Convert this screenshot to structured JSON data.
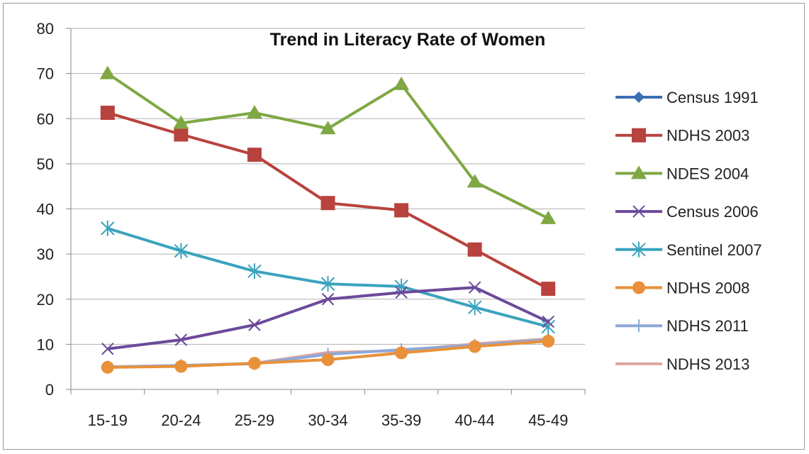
{
  "chart_data": {
    "type": "line",
    "title": "Trend in Literacy Rate of Women",
    "xlabel": "",
    "ylabel": "",
    "ylim": [
      0,
      80
    ],
    "yticks": [
      0,
      10,
      20,
      30,
      40,
      50,
      60,
      70,
      80
    ],
    "categories": [
      "15-19",
      "20-24",
      "25-29",
      "30-34",
      "35-39",
      "40-44",
      "45-49"
    ],
    "grid": true,
    "legend_position": "right",
    "series": [
      {
        "name": "Census 1991",
        "color": "#3c6eb4",
        "marker": "diamond",
        "values": [
          null,
          null,
          null,
          null,
          null,
          null,
          null
        ]
      },
      {
        "name": "NDHS 2003",
        "color": "#b8423d",
        "marker": "square",
        "values": [
          61.3,
          56.5,
          52.0,
          41.3,
          39.7,
          31.0,
          22.3
        ]
      },
      {
        "name": "NDES 2004",
        "color": "#7fa844",
        "marker": "triangle",
        "values": [
          70.0,
          59.0,
          61.3,
          57.8,
          67.6,
          46.0,
          37.9
        ]
      },
      {
        "name": "Census 2006",
        "color": "#6b4a9a",
        "marker": "x",
        "values": [
          9.0,
          11.0,
          14.3,
          20.0,
          21.5,
          22.6,
          15.0
        ]
      },
      {
        "name": "Sentinel 2007",
        "color": "#3aa3bd",
        "marker": "asterisk",
        "values": [
          35.7,
          30.7,
          26.2,
          23.4,
          22.8,
          18.2,
          13.9
        ]
      },
      {
        "name": "NDHS 2008",
        "color": "#e8913a",
        "marker": "circle",
        "values": [
          4.9,
          5.1,
          5.8,
          6.6,
          8.1,
          9.5,
          10.7
        ]
      },
      {
        "name": "NDHS 2011",
        "color": "#8da8d8",
        "marker": "plus",
        "values": [
          5.0,
          5.3,
          5.7,
          7.8,
          8.8,
          9.8,
          11.0
        ]
      },
      {
        "name": "NDHS 2013",
        "color": "#e0a4a0",
        "marker": "none",
        "values": [
          5.0,
          5.3,
          5.8,
          8.2,
          8.6,
          10.1,
          11.2
        ]
      }
    ]
  }
}
